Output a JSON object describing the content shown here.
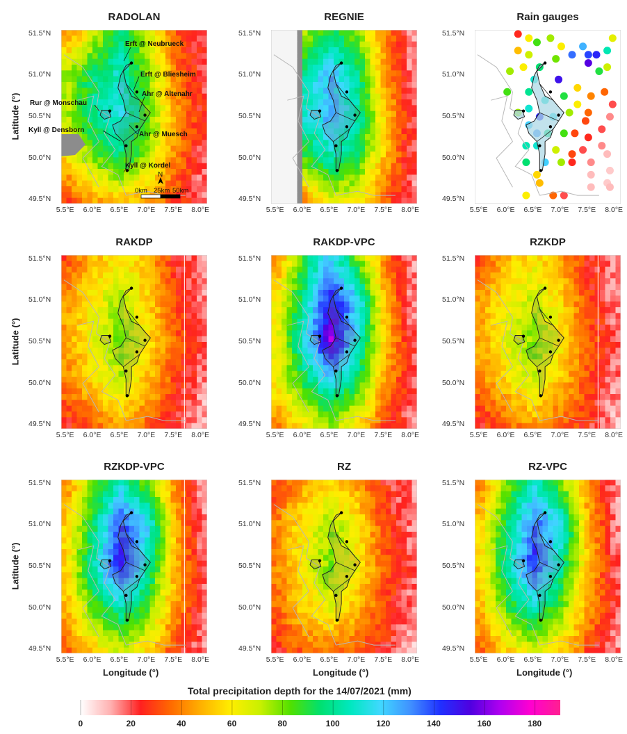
{
  "panels": [
    {
      "title": "RADOLAN",
      "field": "radolan"
    },
    {
      "title": "REGNIE",
      "field": "regnie"
    },
    {
      "title": "Rain gauges",
      "field": "gauges"
    },
    {
      "title": "RAKDP",
      "field": "rakdp"
    },
    {
      "title": "RAKDP-VPC",
      "field": "rakdpvpc"
    },
    {
      "title": "RZKDP",
      "field": "rzkdp"
    },
    {
      "title": "RZKDP-VPC",
      "field": "rzkdpvpc"
    },
    {
      "title": "RZ",
      "field": "rz"
    },
    {
      "title": "RZ-VPC",
      "field": "rzvpc"
    }
  ],
  "axes": {
    "x_label": "Longitude (°)",
    "y_label": "Latitude (°)",
    "x_ticks": [
      "5.5°E",
      "6.0°E",
      "6.5°E",
      "7.0°E",
      "7.5°E",
      "8.0°E"
    ],
    "y_ticks": [
      "51.5°N",
      "51.0°N",
      "50.5°N",
      "50.0°N",
      "49.5°N"
    ],
    "x_range": [
      5.4,
      8.1
    ],
    "y_range": [
      49.45,
      51.55
    ]
  },
  "annotations": [
    {
      "text": "Erft @ Neubrueck"
    },
    {
      "text": "Erft @ Bliesheim"
    },
    {
      "text": "Ahr @ Altenahr"
    },
    {
      "text": "Rur @ Monschau"
    },
    {
      "text": "Kyll @ Densborn"
    },
    {
      "text": "Ahr @ Muesch"
    },
    {
      "text": "Kyll @ Kordel"
    }
  ],
  "scalebar": {
    "north": "N",
    "labels": [
      "0km",
      "25km",
      "50km"
    ]
  },
  "colorbar": {
    "title": "Total precipitation depth for the 14/07/2021 (mm)",
    "ticks": [
      "0",
      "20",
      "40",
      "60",
      "80",
      "100",
      "120",
      "140",
      "160",
      "180"
    ],
    "range": [
      0,
      190
    ],
    "colors": [
      "#ffffff",
      "#ffb0b0",
      "#ff2020",
      "#ff6a00",
      "#ffb000",
      "#ffee00",
      "#c8f000",
      "#50e000",
      "#00e070",
      "#00e8c0",
      "#40d8ff",
      "#4090ff",
      "#2030ff",
      "#5000e0",
      "#b000f0",
      "#ff00d0",
      "#ff2090"
    ]
  },
  "chart_data": {
    "type": "heatmap",
    "variable": "Total precipitation depth for the 14/07/2021 (mm)",
    "x": [
      5.5,
      6.0,
      6.5,
      7.0,
      7.5,
      8.0
    ],
    "y": [
      49.5,
      50.0,
      50.5,
      51.0,
      51.5
    ],
    "xlabel": "Longitude (°)",
    "ylabel": "Latitude (°)",
    "value_range": [
      0,
      190
    ],
    "series": [
      {
        "name": "RADOLAN",
        "values": [
          [
            40,
            70,
            95,
            70,
            35,
            20
          ],
          [
            75,
            95,
            110,
            80,
            40,
            20
          ],
          [
            70,
            100,
            115,
            85,
            45,
            25
          ],
          [
            55,
            80,
            95,
            75,
            40,
            20
          ],
          [
            30,
            45,
            55,
            45,
            30,
            15
          ]
        ]
      },
      {
        "name": "REGNIE",
        "values": [
          [
            null,
            75,
            95,
            80,
            40,
            15
          ],
          [
            null,
            100,
            125,
            100,
            45,
            15
          ],
          [
            null,
            110,
            125,
            105,
            55,
            20
          ],
          [
            null,
            85,
            105,
            90,
            50,
            20
          ],
          [
            null,
            40,
            70,
            60,
            35,
            15
          ]
        ]
      },
      {
        "name": "RAKDP",
        "values": [
          [
            30,
            50,
            60,
            50,
            25,
            15
          ],
          [
            45,
            60,
            75,
            55,
            30,
            15
          ],
          [
            45,
            65,
            80,
            60,
            35,
            20
          ],
          [
            40,
            55,
            70,
            50,
            30,
            15
          ],
          [
            25,
            35,
            45,
            35,
            25,
            10
          ]
        ]
      },
      {
        "name": "RAKDP-VPC",
        "values": [
          [
            40,
            90,
            120,
            80,
            40,
            15
          ],
          [
            60,
            100,
            150,
            120,
            50,
            15
          ],
          [
            60,
            110,
            165,
            110,
            55,
            20
          ],
          [
            60,
            90,
            115,
            90,
            45,
            20
          ],
          [
            40,
            60,
            75,
            60,
            30,
            15
          ]
        ]
      },
      {
        "name": "RZKDP",
        "values": [
          [
            30,
            50,
            60,
            45,
            25,
            15
          ],
          [
            45,
            60,
            70,
            55,
            30,
            15
          ],
          [
            45,
            65,
            80,
            60,
            35,
            20
          ],
          [
            40,
            55,
            70,
            50,
            30,
            15
          ],
          [
            25,
            35,
            45,
            35,
            25,
            10
          ]
        ]
      },
      {
        "name": "RZKDP-VPC",
        "values": [
          [
            40,
            80,
            110,
            80,
            40,
            15
          ],
          [
            55,
            95,
            140,
            120,
            50,
            15
          ],
          [
            55,
            105,
            150,
            105,
            50,
            20
          ],
          [
            50,
            85,
            105,
            85,
            45,
            20
          ],
          [
            35,
            55,
            70,
            55,
            30,
            15
          ]
        ]
      },
      {
        "name": "RZ",
        "values": [
          [
            30,
            45,
            55,
            45,
            25,
            15
          ],
          [
            40,
            60,
            75,
            60,
            30,
            15
          ],
          [
            40,
            60,
            80,
            60,
            35,
            20
          ],
          [
            35,
            55,
            65,
            50,
            30,
            15
          ],
          [
            25,
            35,
            40,
            35,
            25,
            10
          ]
        ]
      },
      {
        "name": "RZ-VPC",
        "values": [
          [
            40,
            80,
            110,
            80,
            40,
            15
          ],
          [
            55,
            95,
            135,
            115,
            50,
            15
          ],
          [
            55,
            100,
            145,
            100,
            50,
            20
          ],
          [
            50,
            85,
            105,
            80,
            45,
            20
          ],
          [
            35,
            55,
            70,
            55,
            30,
            15
          ]
        ]
      }
    ],
    "rain_gauges": [
      {
        "lon": 6.2,
        "lat": 51.5,
        "value": 25
      },
      {
        "lon": 6.4,
        "lat": 51.45,
        "value": 60
      },
      {
        "lon": 6.55,
        "lat": 51.4,
        "value": 85
      },
      {
        "lon": 6.8,
        "lat": 51.45,
        "value": 75
      },
      {
        "lon": 7.0,
        "lat": 51.35,
        "value": 60
      },
      {
        "lon": 7.4,
        "lat": 51.35,
        "value": 125
      },
      {
        "lon": 7.5,
        "lat": 51.25,
        "value": 140
      },
      {
        "lon": 7.65,
        "lat": 51.25,
        "value": 145
      },
      {
        "lon": 7.85,
        "lat": 51.3,
        "value": 105
      },
      {
        "lon": 7.95,
        "lat": 51.45,
        "value": 65
      },
      {
        "lon": 6.2,
        "lat": 51.3,
        "value": 50
      },
      {
        "lon": 6.4,
        "lat": 51.25,
        "value": 70
      },
      {
        "lon": 6.6,
        "lat": 51.1,
        "value": 95
      },
      {
        "lon": 6.9,
        "lat": 51.2,
        "value": 80
      },
      {
        "lon": 7.2,
        "lat": 51.25,
        "value": 135
      },
      {
        "lon": 7.5,
        "lat": 51.15,
        "value": 155
      },
      {
        "lon": 7.7,
        "lat": 51.05,
        "value": 90
      },
      {
        "lon": 7.85,
        "lat": 51.1,
        "value": 70
      },
      {
        "lon": 6.05,
        "lat": 51.05,
        "value": 75
      },
      {
        "lon": 6.3,
        "lat": 51.1,
        "value": 60
      },
      {
        "lon": 6.5,
        "lat": 50.95,
        "value": 110
      },
      {
        "lon": 6.95,
        "lat": 50.95,
        "value": 150
      },
      {
        "lon": 7.3,
        "lat": 50.85,
        "value": 55
      },
      {
        "lon": 7.55,
        "lat": 50.75,
        "value": 40
      },
      {
        "lon": 7.8,
        "lat": 50.8,
        "value": 35
      },
      {
        "lon": 7.95,
        "lat": 50.65,
        "value": 20
      },
      {
        "lon": 6.0,
        "lat": 50.8,
        "value": 85
      },
      {
        "lon": 6.4,
        "lat": 50.8,
        "value": 100
      },
      {
        "lon": 6.7,
        "lat": 50.7,
        "value": 110
      },
      {
        "lon": 7.05,
        "lat": 50.75,
        "value": 90
      },
      {
        "lon": 7.3,
        "lat": 50.65,
        "value": 60
      },
      {
        "lon": 7.5,
        "lat": 50.55,
        "value": 35
      },
      {
        "lon": 6.2,
        "lat": 50.55,
        "value": 75
      },
      {
        "lon": 6.4,
        "lat": 50.6,
        "value": 110
      },
      {
        "lon": 6.6,
        "lat": 50.5,
        "value": 145
      },
      {
        "lon": 6.85,
        "lat": 50.5,
        "value": 115
      },
      {
        "lon": 7.15,
        "lat": 50.55,
        "value": 75
      },
      {
        "lon": 7.45,
        "lat": 50.45,
        "value": 30
      },
      {
        "lon": 7.75,
        "lat": 50.35,
        "value": 20
      },
      {
        "lon": 7.9,
        "lat": 50.5,
        "value": 15
      },
      {
        "lon": 6.4,
        "lat": 50.4,
        "value": 120
      },
      {
        "lon": 6.55,
        "lat": 50.3,
        "value": 130
      },
      {
        "lon": 6.75,
        "lat": 50.3,
        "value": 95
      },
      {
        "lon": 7.05,
        "lat": 50.3,
        "value": 85
      },
      {
        "lon": 7.25,
        "lat": 50.3,
        "value": 30
      },
      {
        "lon": 7.5,
        "lat": 50.25,
        "value": 25
      },
      {
        "lon": 7.75,
        "lat": 50.15,
        "value": 15
      },
      {
        "lon": 6.35,
        "lat": 50.15,
        "value": 105
      },
      {
        "lon": 6.55,
        "lat": 50.15,
        "value": 110
      },
      {
        "lon": 6.9,
        "lat": 50.1,
        "value": 70
      },
      {
        "lon": 7.2,
        "lat": 50.05,
        "value": 30
      },
      {
        "lon": 7.4,
        "lat": 50.1,
        "value": 20
      },
      {
        "lon": 7.85,
        "lat": 50.05,
        "value": 10
      },
      {
        "lon": 6.35,
        "lat": 49.95,
        "value": 95
      },
      {
        "lon": 6.7,
        "lat": 49.95,
        "value": 120
      },
      {
        "lon": 7.0,
        "lat": 49.95,
        "value": 75
      },
      {
        "lon": 7.2,
        "lat": 49.95,
        "value": 25
      },
      {
        "lon": 7.55,
        "lat": 49.95,
        "value": 15
      },
      {
        "lon": 7.9,
        "lat": 49.85,
        "value": 8
      },
      {
        "lon": 6.55,
        "lat": 49.8,
        "value": 55
      },
      {
        "lon": 7.55,
        "lat": 49.8,
        "value": 10
      },
      {
        "lon": 7.85,
        "lat": 49.7,
        "value": 8
      },
      {
        "lon": 6.6,
        "lat": 49.7,
        "value": 50
      },
      {
        "lon": 7.55,
        "lat": 49.65,
        "value": 10
      },
      {
        "lon": 7.9,
        "lat": 49.65,
        "value": 10
      },
      {
        "lon": 6.85,
        "lat": 49.55,
        "value": 35
      },
      {
        "lon": 7.05,
        "lat": 49.55,
        "value": 20
      },
      {
        "lon": 6.35,
        "lat": 49.55,
        "value": 60
      }
    ]
  }
}
